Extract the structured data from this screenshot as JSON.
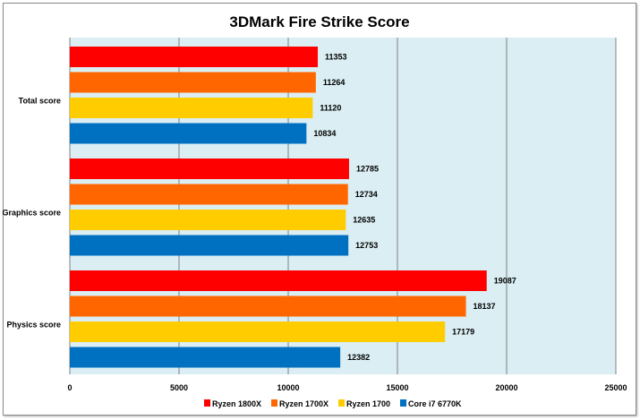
{
  "chart_data": {
    "type": "bar",
    "orientation": "horizontal",
    "title": "3DMark Fire Strike Score",
    "categories": [
      "Total score",
      "Graphics score",
      "Physics score"
    ],
    "series": [
      {
        "name": "Ryzen 1800X",
        "color": "#ff0000",
        "values": [
          11353,
          12785,
          19087
        ]
      },
      {
        "name": "Ryzen 1700X",
        "color": "#ff6600",
        "values": [
          11264,
          12734,
          18137
        ]
      },
      {
        "name": "Ryzen 1700",
        "color": "#ffcc00",
        "values": [
          11120,
          12635,
          17179
        ]
      },
      {
        "name": "Core i7 6770K",
        "color": "#0070c0",
        "values": [
          10834,
          12753,
          12382
        ]
      }
    ],
    "xlim": [
      0,
      25000
    ],
    "xticks": [
      "0",
      "5000",
      "10000",
      "15000",
      "20000",
      "25000"
    ],
    "grid": true,
    "plot_background": "#daeef3",
    "legend_position": "bottom",
    "data_labels": true
  }
}
